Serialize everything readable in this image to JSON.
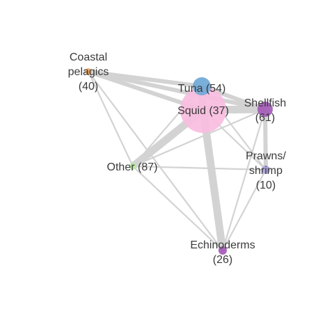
{
  "nodes": [
    {
      "id": "squid",
      "label_lines": [
        "Squid (37)"
      ],
      "color": "#f9bde0"
    },
    {
      "id": "tuna",
      "label_lines": [
        "Tuna (54)"
      ],
      "color": "#6fa8d6"
    },
    {
      "id": "shellfish",
      "label_lines": [
        "Shellfish",
        "(61)"
      ],
      "color": "#a45ab7"
    },
    {
      "id": "coastal",
      "label_lines": [
        "Coastal",
        "pelagics",
        "(40)"
      ],
      "color": "#f2a95e"
    },
    {
      "id": "other",
      "label_lines": [
        "Other (87)"
      ],
      "color": "#b9eaa3"
    },
    {
      "id": "prawns",
      "label_lines": [
        "Prawns/",
        "shrimp",
        "(10)"
      ],
      "color": "#aaa3e0"
    },
    {
      "id": "echinoderms",
      "label_lines": [
        "Echinoderms",
        "(26)"
      ],
      "color": "#a45ab7"
    }
  ],
  "edges": [
    {
      "source": "squid",
      "target": "tuna",
      "weight": "heavy"
    },
    {
      "source": "squid",
      "target": "shellfish",
      "weight": "heavy"
    },
    {
      "source": "squid",
      "target": "other",
      "weight": "heavy"
    },
    {
      "source": "squid",
      "target": "echinoderms",
      "weight": "heavy"
    },
    {
      "source": "squid",
      "target": "coastal",
      "weight": "medium"
    },
    {
      "source": "squid",
      "target": "prawns",
      "weight": "light"
    },
    {
      "source": "tuna",
      "target": "shellfish",
      "weight": "medium"
    },
    {
      "source": "tuna",
      "target": "coastal",
      "weight": "medium"
    },
    {
      "source": "tuna",
      "target": "other",
      "weight": "light"
    },
    {
      "source": "tuna",
      "target": "prawns",
      "weight": "light"
    },
    {
      "source": "shellfish",
      "target": "coastal",
      "weight": "medium"
    },
    {
      "source": "shellfish",
      "target": "other",
      "weight": "light"
    },
    {
      "source": "shellfish",
      "target": "prawns",
      "weight": "medium"
    },
    {
      "source": "shellfish",
      "target": "echinoderms",
      "weight": "light"
    },
    {
      "source": "coastal",
      "target": "other",
      "weight": "light"
    },
    {
      "source": "coastal",
      "target": "echinoderms",
      "weight": "light"
    },
    {
      "source": "other",
      "target": "prawns",
      "weight": "light"
    },
    {
      "source": "other",
      "target": "echinoderms",
      "weight": "light"
    },
    {
      "source": "prawns",
      "target": "echinoderms",
      "weight": "light"
    }
  ]
}
